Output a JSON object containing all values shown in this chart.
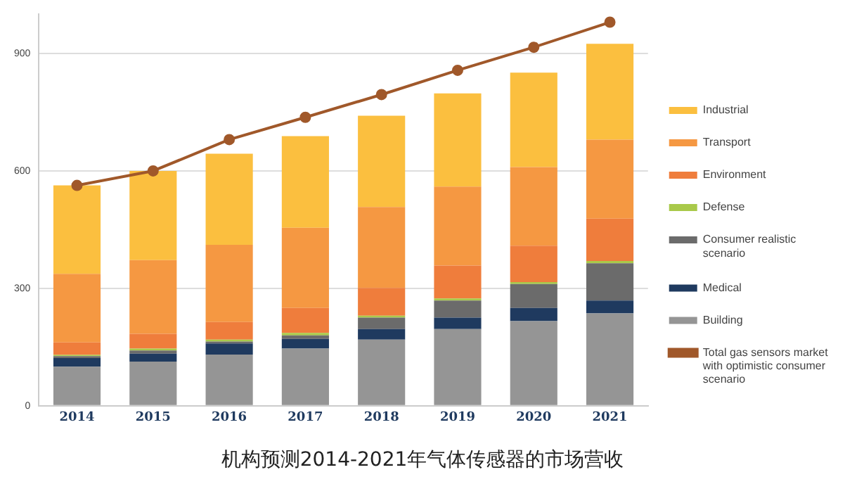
{
  "chart_data": {
    "type": "bar",
    "title": "机构预测2014-2021年气体传感器的市场营收",
    "stacked": true,
    "categories": [
      "2014",
      "2015",
      "2016",
      "2017",
      "2018",
      "2019",
      "2020",
      "2021"
    ],
    "series": [
      {
        "name": "Building",
        "color": "#959595",
        "values": [
          100,
          113,
          131,
          146,
          169,
          196,
          216,
          236
        ]
      },
      {
        "name": "Medical",
        "color": "#1f3a5f",
        "values": [
          22,
          20,
          28,
          25,
          27,
          29,
          34,
          33
        ]
      },
      {
        "name": "Consumer realistic scenario",
        "color": "#6b6b6b",
        "values": [
          5,
          8,
          5,
          9,
          29,
          44,
          61,
          95
        ]
      },
      {
        "name": "Defense",
        "color": "#a9c94a",
        "values": [
          3,
          5,
          5,
          6,
          5,
          5,
          5,
          6
        ]
      },
      {
        "name": "Environment",
        "color": "#ef7d3c",
        "values": [
          32,
          38,
          45,
          64,
          71,
          84,
          93,
          108
        ]
      },
      {
        "name": "Transport",
        "color": "#f59842",
        "values": [
          175,
          188,
          197,
          205,
          207,
          202,
          201,
          202
        ]
      },
      {
        "name": "Industrial",
        "color": "#fbbf3f",
        "values": [
          226,
          228,
          233,
          234,
          233,
          238,
          241,
          245
        ]
      },
      {
        "name": "Total gas sensors market with optimistic consumer scenario",
        "type": "line",
        "color": "#a0582a",
        "values": [
          563,
          600,
          680,
          737,
          795,
          857,
          916,
          980
        ]
      }
    ],
    "ylim": [
      0,
      1000
    ],
    "yticks": [
      0,
      300,
      600,
      900
    ],
    "grid": "y",
    "legend": "right",
    "marker": "circle"
  }
}
